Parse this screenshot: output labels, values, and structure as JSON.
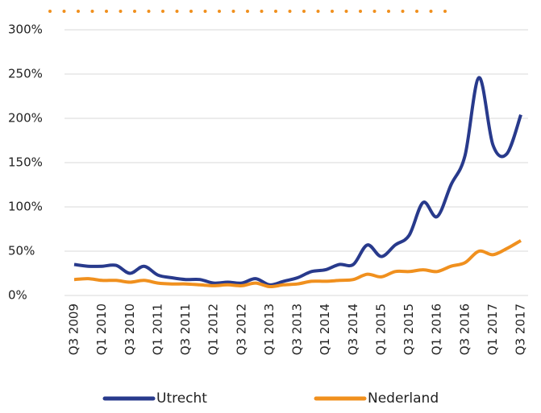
{
  "chart_data": {
    "type": "line",
    "categories": [
      "Q3 2009",
      null,
      "Q1 2010",
      null,
      "Q3 2010",
      null,
      "Q1 2011",
      null,
      "Q3 2011",
      null,
      "Q1 2012",
      null,
      "Q3 2012",
      null,
      "Q1 2013",
      null,
      "Q3 2013",
      null,
      "Q1 2014",
      null,
      "Q3 2014",
      null,
      "Q1 2015",
      null,
      "Q3 2015",
      null,
      "Q1 2016",
      null,
      "Q3 2016",
      null,
      "Q1 2017",
      null,
      "Q3 2017"
    ],
    "series": [
      {
        "name": "Utrecht",
        "color": "#283a8c",
        "values": [
          35,
          33,
          33,
          34,
          25,
          33,
          23,
          20,
          18,
          18,
          14,
          15,
          14,
          19,
          12,
          16,
          20,
          27,
          29,
          35,
          35,
          57,
          44,
          57,
          68,
          105,
          89,
          125,
          158,
          246,
          170,
          160,
          204
        ]
      },
      {
        "name": "Nederland",
        "color": "#f0901e",
        "values": [
          18,
          19,
          17,
          17,
          15,
          17,
          14,
          13,
          13,
          12,
          11,
          12,
          11,
          14,
          10,
          12,
          13,
          16,
          16,
          17,
          18,
          24,
          21,
          27,
          27,
          29,
          27,
          33,
          37,
          50,
          46,
          53,
          62
        ]
      }
    ],
    "ylim": [
      0,
      300
    ],
    "yticks": [
      {
        "value": 0,
        "label": "0%"
      },
      {
        "value": 50,
        "label": "50%"
      },
      {
        "value": 100,
        "label": "100%"
      },
      {
        "value": 150,
        "label": "150%"
      },
      {
        "value": 200,
        "label": "200%"
      },
      {
        "value": 250,
        "label": "250%"
      },
      {
        "value": 300,
        "label": "300%"
      }
    ],
    "grid": true
  }
}
